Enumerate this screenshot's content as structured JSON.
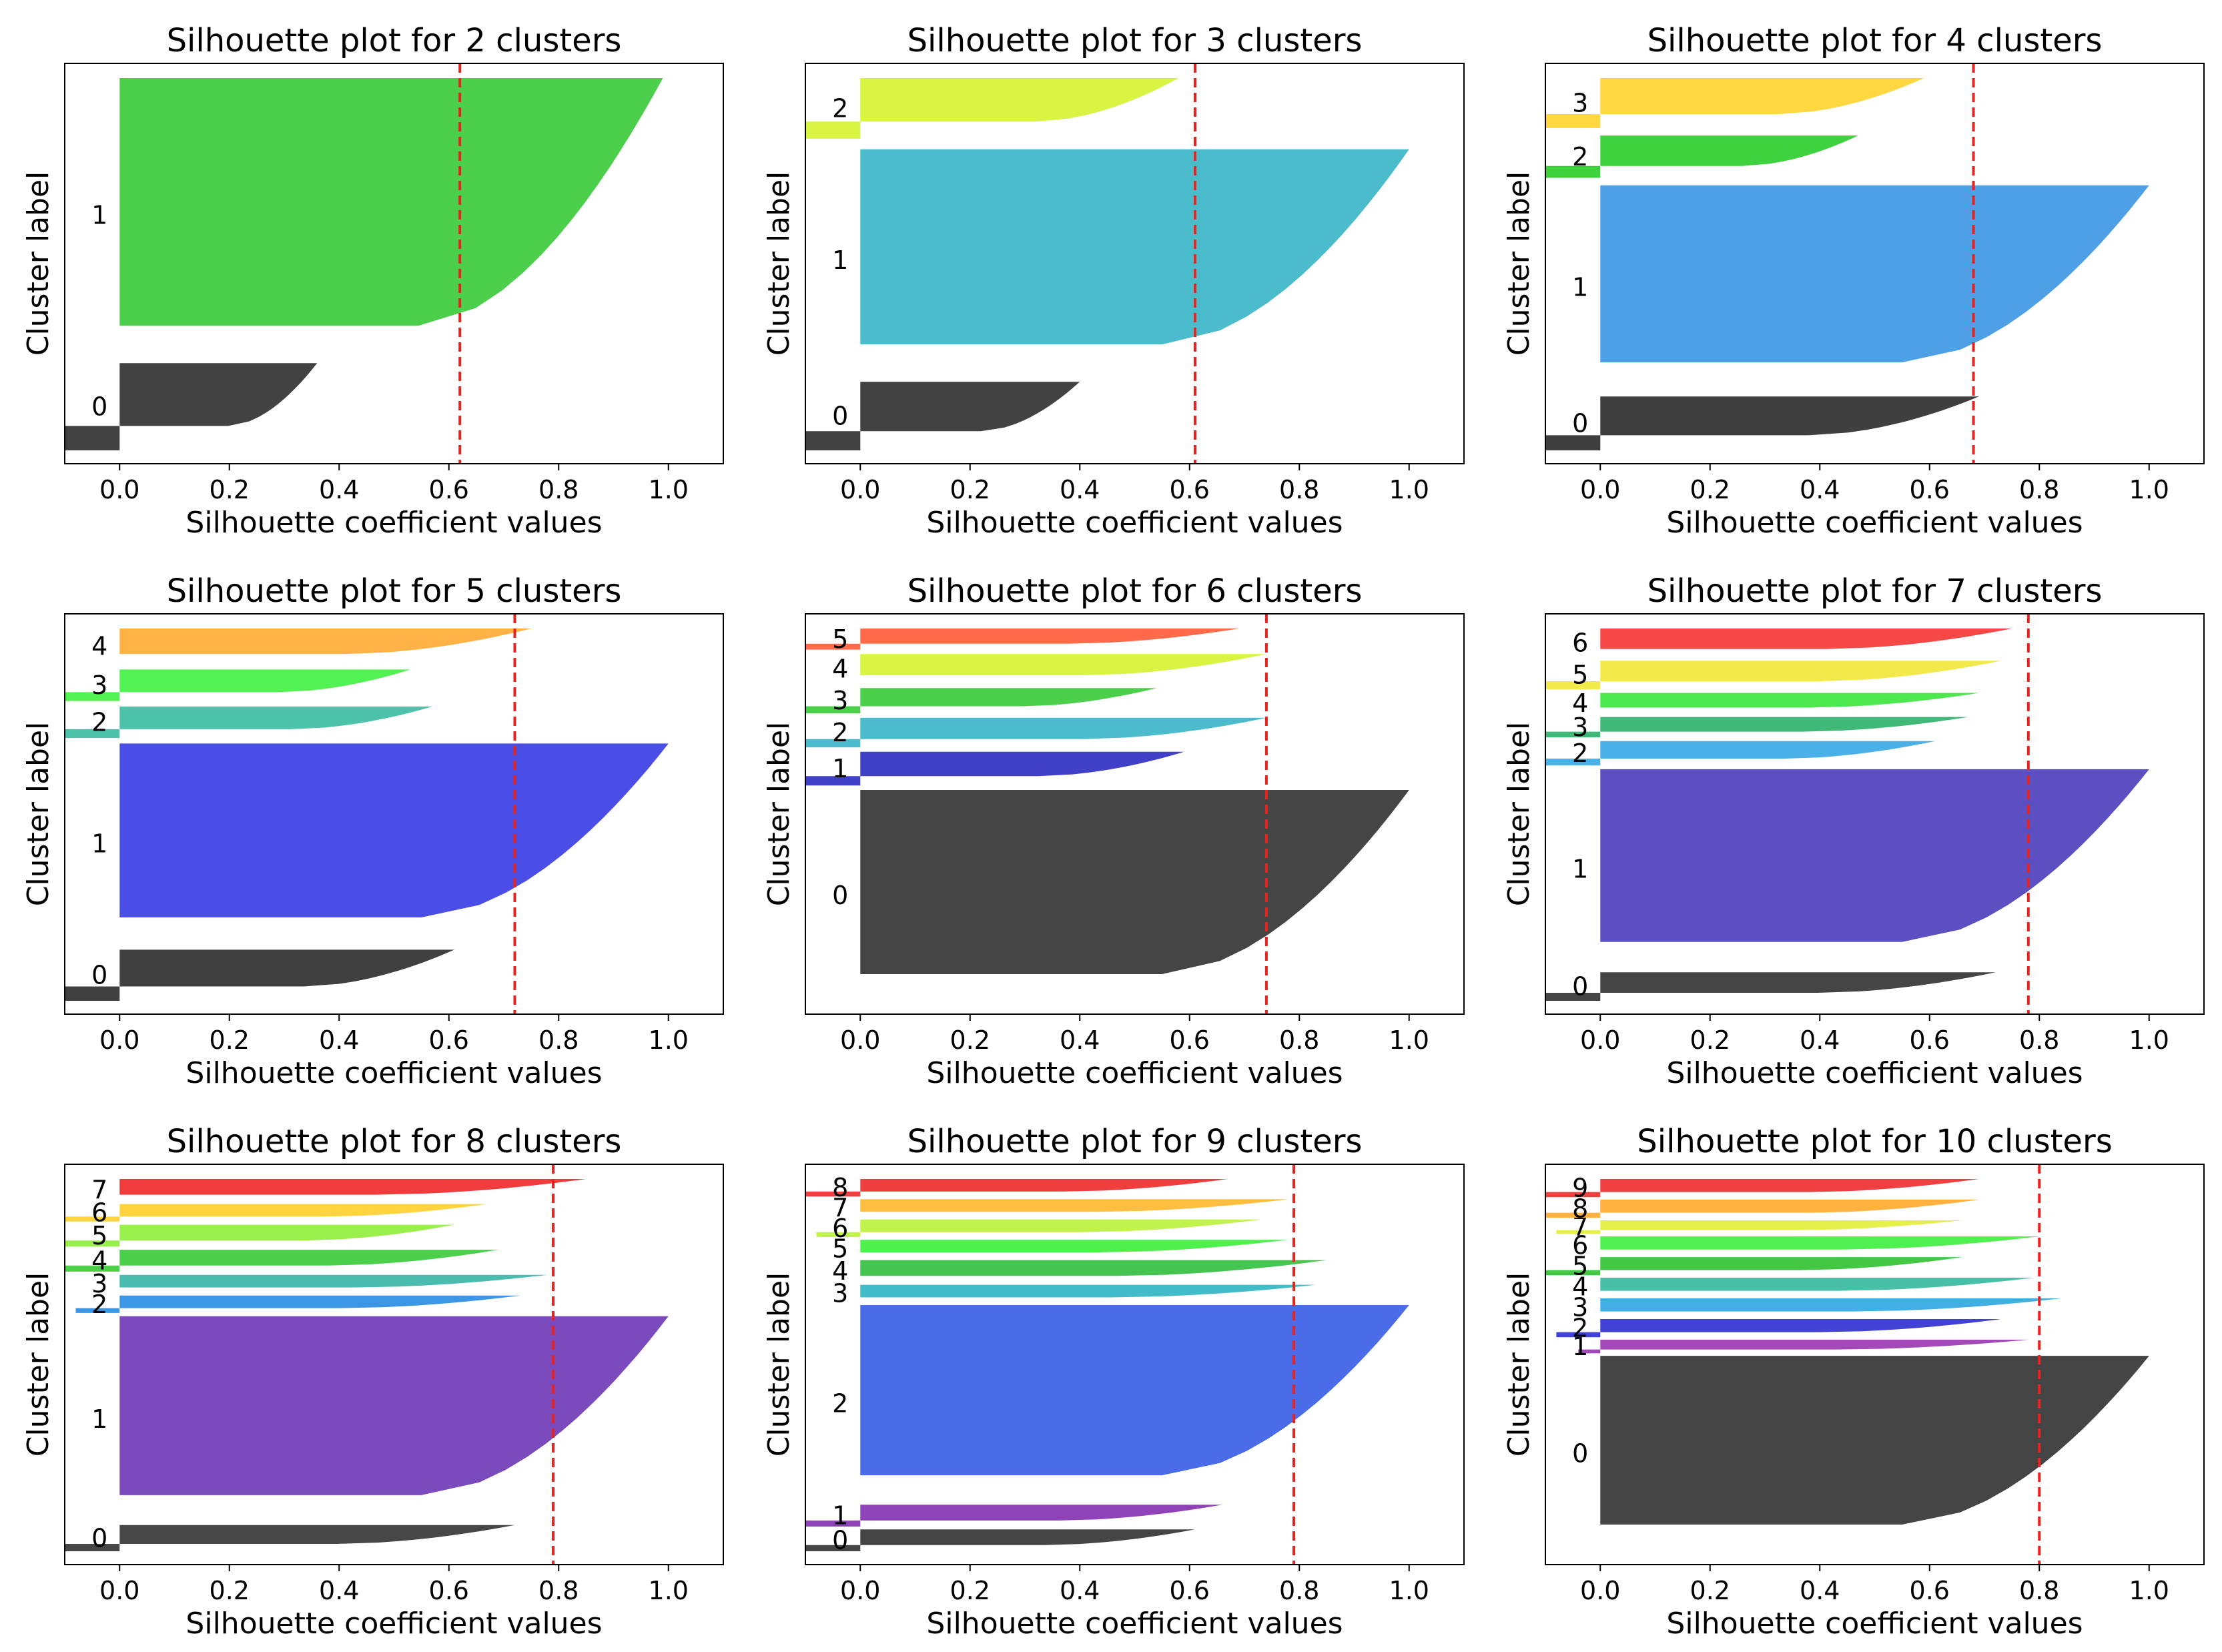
{
  "colors": {
    "threshold": "#e8231f",
    "frame": "#000000",
    "text": "#000000"
  },
  "chart_data": [
    {
      "type": "area",
      "title": "Silhouette plot for 2 clusters",
      "xlabel": "Silhouette coefficient values",
      "ylabel": "Cluster label",
      "xlim": [
        -0.1,
        1.1
      ],
      "xticks": [
        "0.0",
        "0.2",
        "0.4",
        "0.6",
        "0.8",
        "1.0"
      ],
      "grid": false,
      "silhouette_average": 0.62,
      "clusters": [
        {
          "label": "0",
          "color": "#424242",
          "max": 0.36,
          "min": -0.1,
          "size": 0.21
        },
        {
          "label": "1",
          "color": "#4cd04c",
          "max": 0.99,
          "min": 0.0,
          "size": 0.66
        }
      ]
    },
    {
      "type": "area",
      "title": "Silhouette plot for 3 clusters",
      "xlabel": "Silhouette coefficient values",
      "ylabel": "Cluster label",
      "xlim": [
        -0.1,
        1.1
      ],
      "xticks": [
        "0.0",
        "0.2",
        "0.4",
        "0.6",
        "0.8",
        "1.0"
      ],
      "grid": false,
      "silhouette_average": 0.61,
      "clusters": [
        {
          "label": "0",
          "color": "#424242",
          "max": 0.4,
          "min": -0.1,
          "size": 0.17
        },
        {
          "label": "1",
          "color": "#4bbccc",
          "max": 1.0,
          "min": 0.0,
          "size": 0.55
        },
        {
          "label": "2",
          "color": "#d9f443",
          "max": 0.58,
          "min": -0.1,
          "size": 0.15
        }
      ]
    },
    {
      "type": "area",
      "title": "Silhouette plot for 4 clusters",
      "xlabel": "Silhouette coefficient values",
      "ylabel": "Cluster label",
      "xlim": [
        -0.1,
        1.1
      ],
      "xticks": [
        "0.0",
        "0.2",
        "0.4",
        "0.6",
        "0.8",
        "1.0"
      ],
      "grid": false,
      "silhouette_average": 0.68,
      "clusters": [
        {
          "label": "0",
          "color": "#3f3f3f",
          "max": 0.69,
          "min": -0.1,
          "size": 0.14
        },
        {
          "label": "1",
          "color": "#4da0e6",
          "max": 1.0,
          "min": 0.0,
          "size": 0.53
        },
        {
          "label": "2",
          "color": "#3ed23e",
          "max": 0.47,
          "min": -0.1,
          "size": 0.11
        },
        {
          "label": "3",
          "color": "#ffd740",
          "max": 0.59,
          "min": -0.1,
          "size": 0.13
        }
      ]
    },
    {
      "type": "area",
      "title": "Silhouette plot for 5 clusters",
      "xlabel": "Silhouette coefficient values",
      "ylabel": "Cluster label",
      "xlim": [
        -0.1,
        1.1
      ],
      "xticks": [
        "0.0",
        "0.2",
        "0.4",
        "0.6",
        "0.8",
        "1.0"
      ],
      "grid": false,
      "silhouette_average": 0.72,
      "clusters": [
        {
          "label": "0",
          "color": "#404040",
          "max": 0.61,
          "min": -0.1,
          "size": 0.13
        },
        {
          "label": "1",
          "color": "#4a4de6",
          "max": 1.0,
          "min": 0.0,
          "size": 0.51
        },
        {
          "label": "2",
          "color": "#4cc2aa",
          "max": 0.57,
          "min": -0.1,
          "size": 0.08
        },
        {
          "label": "3",
          "color": "#52f252",
          "max": 0.53,
          "min": -0.1,
          "size": 0.08
        },
        {
          "label": "4",
          "color": "#ffb347",
          "max": 0.75,
          "min": 0.0,
          "size": 0.09
        }
      ]
    },
    {
      "type": "area",
      "title": "Silhouette plot for 6 clusters",
      "xlabel": "Silhouette coefficient values",
      "ylabel": "Cluster label",
      "xlim": [
        -0.1,
        1.1
      ],
      "xticks": [
        "0.0",
        "0.2",
        "0.4",
        "0.6",
        "0.8",
        "1.0"
      ],
      "grid": false,
      "silhouette_average": 0.74,
      "clusters": [
        {
          "label": "0",
          "color": "#454545",
          "max": 1.0,
          "min": 0.0,
          "size": 0.5
        },
        {
          "label": "1",
          "color": "#4040c8",
          "max": 0.59,
          "min": -0.1,
          "size": 0.08
        },
        {
          "label": "2",
          "color": "#4bbccc",
          "max": 0.74,
          "min": -0.1,
          "size": 0.07
        },
        {
          "label": "3",
          "color": "#4cd04c",
          "max": 0.54,
          "min": -0.1,
          "size": 0.06
        },
        {
          "label": "4",
          "color": "#d9f443",
          "max": 0.74,
          "min": 0.0,
          "size": 0.07
        },
        {
          "label": "5",
          "color": "#ff6a4a",
          "max": 0.69,
          "min": -0.1,
          "size": 0.05
        }
      ]
    },
    {
      "type": "area",
      "title": "Silhouette plot for 7 clusters",
      "xlabel": "Silhouette coefficient values",
      "ylabel": "Cluster label",
      "xlim": [
        -0.1,
        1.1
      ],
      "xticks": [
        "0.0",
        "0.2",
        "0.4",
        "0.6",
        "0.8",
        "1.0"
      ],
      "grid": false,
      "silhouette_average": 0.78,
      "clusters": [
        {
          "label": "0",
          "color": "#454545",
          "max": 0.72,
          "min": -0.1,
          "size": 0.07
        },
        {
          "label": "1",
          "color": "#5b4fc2",
          "max": 1.0,
          "min": 0.0,
          "size": 0.49
        },
        {
          "label": "2",
          "color": "#4ab0e8",
          "max": 0.61,
          "min": -0.1,
          "size": 0.06
        },
        {
          "label": "3",
          "color": "#40b878",
          "max": 0.67,
          "min": -0.1,
          "size": 0.05
        },
        {
          "label": "4",
          "color": "#4de84d",
          "max": 0.69,
          "min": 0.0,
          "size": 0.05
        },
        {
          "label": "5",
          "color": "#f2ea4a",
          "max": 0.73,
          "min": -0.1,
          "size": 0.07
        },
        {
          "label": "6",
          "color": "#f74848",
          "max": 0.75,
          "min": 0.0,
          "size": 0.07
        }
      ]
    },
    {
      "type": "area",
      "title": "Silhouette plot for 8 clusters",
      "xlabel": "Silhouette coefficient values",
      "ylabel": "Cluster label",
      "xlim": [
        -0.1,
        1.1
      ],
      "xticks": [
        "0.0",
        "0.2",
        "0.4",
        "0.6",
        "0.8",
        "1.0"
      ],
      "grid": false,
      "silhouette_average": 0.79,
      "clusters": [
        {
          "label": "0",
          "color": "#474747",
          "max": 0.72,
          "min": -0.1,
          "size": 0.06
        },
        {
          "label": "1",
          "color": "#7b4bbd",
          "max": 1.0,
          "min": 0.0,
          "size": 0.47
        },
        {
          "label": "2",
          "color": "#3c96e6",
          "max": 0.73,
          "min": -0.08,
          "size": 0.04
        },
        {
          "label": "3",
          "color": "#4bbcb0",
          "max": 0.78,
          "min": 0.0,
          "size": 0.04
        },
        {
          "label": "4",
          "color": "#4cd04c",
          "max": 0.69,
          "min": -0.1,
          "size": 0.05
        },
        {
          "label": "5",
          "color": "#9af04a",
          "max": 0.61,
          "min": -0.1,
          "size": 0.05
        },
        {
          "label": "6",
          "color": "#ffd43f",
          "max": 0.67,
          "min": -0.1,
          "size": 0.04
        },
        {
          "label": "7",
          "color": "#f03c3c",
          "max": 0.85,
          "min": 0.0,
          "size": 0.05
        }
      ]
    },
    {
      "type": "area",
      "title": "Silhouette plot for 9 clusters",
      "xlabel": "Silhouette coefficient values",
      "ylabel": "Cluster label",
      "xlim": [
        -0.1,
        1.1
      ],
      "xticks": [
        "0.0",
        "0.2",
        "0.4",
        "0.6",
        "0.8",
        "1.0"
      ],
      "grid": false,
      "silhouette_average": 0.79,
      "clusters": [
        {
          "label": "0",
          "color": "#454545",
          "max": 0.61,
          "min": -0.1,
          "size": 0.05
        },
        {
          "label": "1",
          "color": "#8e44b8",
          "max": 0.66,
          "min": -0.1,
          "size": 0.05
        },
        {
          "label": "2",
          "color": "#4a6ce8",
          "max": 1.0,
          "min": 0.0,
          "size": 0.45
        },
        {
          "label": "3",
          "color": "#42bcc8",
          "max": 0.83,
          "min": 0.0,
          "size": 0.04
        },
        {
          "label": "4",
          "color": "#45c44f",
          "max": 0.85,
          "min": 0.0,
          "size": 0.05
        },
        {
          "label": "5",
          "color": "#4ef04e",
          "max": 0.78,
          "min": 0.0,
          "size": 0.04
        },
        {
          "label": "6",
          "color": "#c2f24c",
          "max": 0.73,
          "min": -0.08,
          "size": 0.04
        },
        {
          "label": "7",
          "color": "#ffbe40",
          "max": 0.78,
          "min": 0.0,
          "size": 0.04
        },
        {
          "label": "8",
          "color": "#ee3e3e",
          "max": 0.67,
          "min": -0.1,
          "size": 0.04
        }
      ]
    },
    {
      "type": "area",
      "title": "Silhouette plot for 10 clusters",
      "xlabel": "Silhouette coefficient values",
      "ylabel": "Cluster label",
      "xlim": [
        -0.1,
        1.1
      ],
      "xticks": [
        "0.0",
        "0.2",
        "0.4",
        "0.6",
        "0.8",
        "1.0"
      ],
      "grid": false,
      "silhouette_average": 0.8,
      "clusters": [
        {
          "label": "0",
          "color": "#454545",
          "max": 1.0,
          "min": 0.0,
          "size": 0.43
        },
        {
          "label": "1",
          "color": "#a44ab8",
          "max": 0.78,
          "min": -0.04,
          "size": 0.03
        },
        {
          "label": "2",
          "color": "#4242d4",
          "max": 0.73,
          "min": -0.08,
          "size": 0.04
        },
        {
          "label": "3",
          "color": "#42aee6",
          "max": 0.84,
          "min": 0.0,
          "size": 0.04
        },
        {
          "label": "4",
          "color": "#48c0a8",
          "max": 0.79,
          "min": 0.0,
          "size": 0.04
        },
        {
          "label": "5",
          "color": "#44c844",
          "max": 0.66,
          "min": -0.1,
          "size": 0.04
        },
        {
          "label": "6",
          "color": "#50f050",
          "max": 0.8,
          "min": 0.0,
          "size": 0.04
        },
        {
          "label": "7",
          "color": "#e6f04a",
          "max": 0.66,
          "min": -0.08,
          "size": 0.03
        },
        {
          "label": "8",
          "color": "#ffb23f",
          "max": 0.69,
          "min": -0.1,
          "size": 0.04
        },
        {
          "label": "9",
          "color": "#ee4040",
          "max": 0.69,
          "min": -0.1,
          "size": 0.04
        }
      ]
    }
  ]
}
